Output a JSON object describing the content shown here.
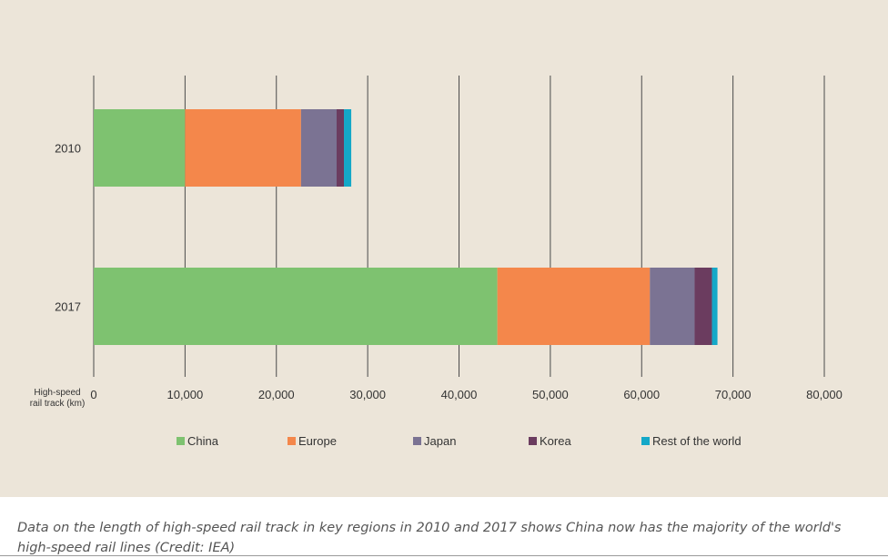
{
  "chart_data": {
    "type": "bar",
    "orientation": "horizontal",
    "stacked": true,
    "categories": [
      "2010",
      "2017"
    ],
    "series": [
      {
        "name": "China",
        "color": "#7ec270",
        "values": [
          10000,
          44200
        ]
      },
      {
        "name": "Europe",
        "color": "#f4874b",
        "values": [
          12700,
          16700
        ]
      },
      {
        "name": "Japan",
        "color": "#7b7393",
        "values": [
          3900,
          4900
        ]
      },
      {
        "name": "Korea",
        "color": "#6b3c5f",
        "values": [
          800,
          1900
        ]
      },
      {
        "name": "Rest of the world",
        "color": "#14a8c8",
        "values": [
          800,
          600
        ]
      }
    ],
    "xlabel": "High-speed rail track (km)",
    "xlabel_lines": [
      "High-speed",
      "rail track (km)"
    ],
    "x_ticks": [
      "0",
      "10,000",
      "20,000",
      "30,000",
      "40,000",
      "50,000",
      "60,000",
      "70,000",
      "80,000"
    ],
    "xlim": [
      0,
      80000
    ],
    "grid": "vertical",
    "legend_position": "bottom"
  },
  "caption": "Data on the length of high-speed rail track in key regions in 2010 and 2017 shows China now has the majority of the world's high-speed rail lines (Credit: IEA)"
}
